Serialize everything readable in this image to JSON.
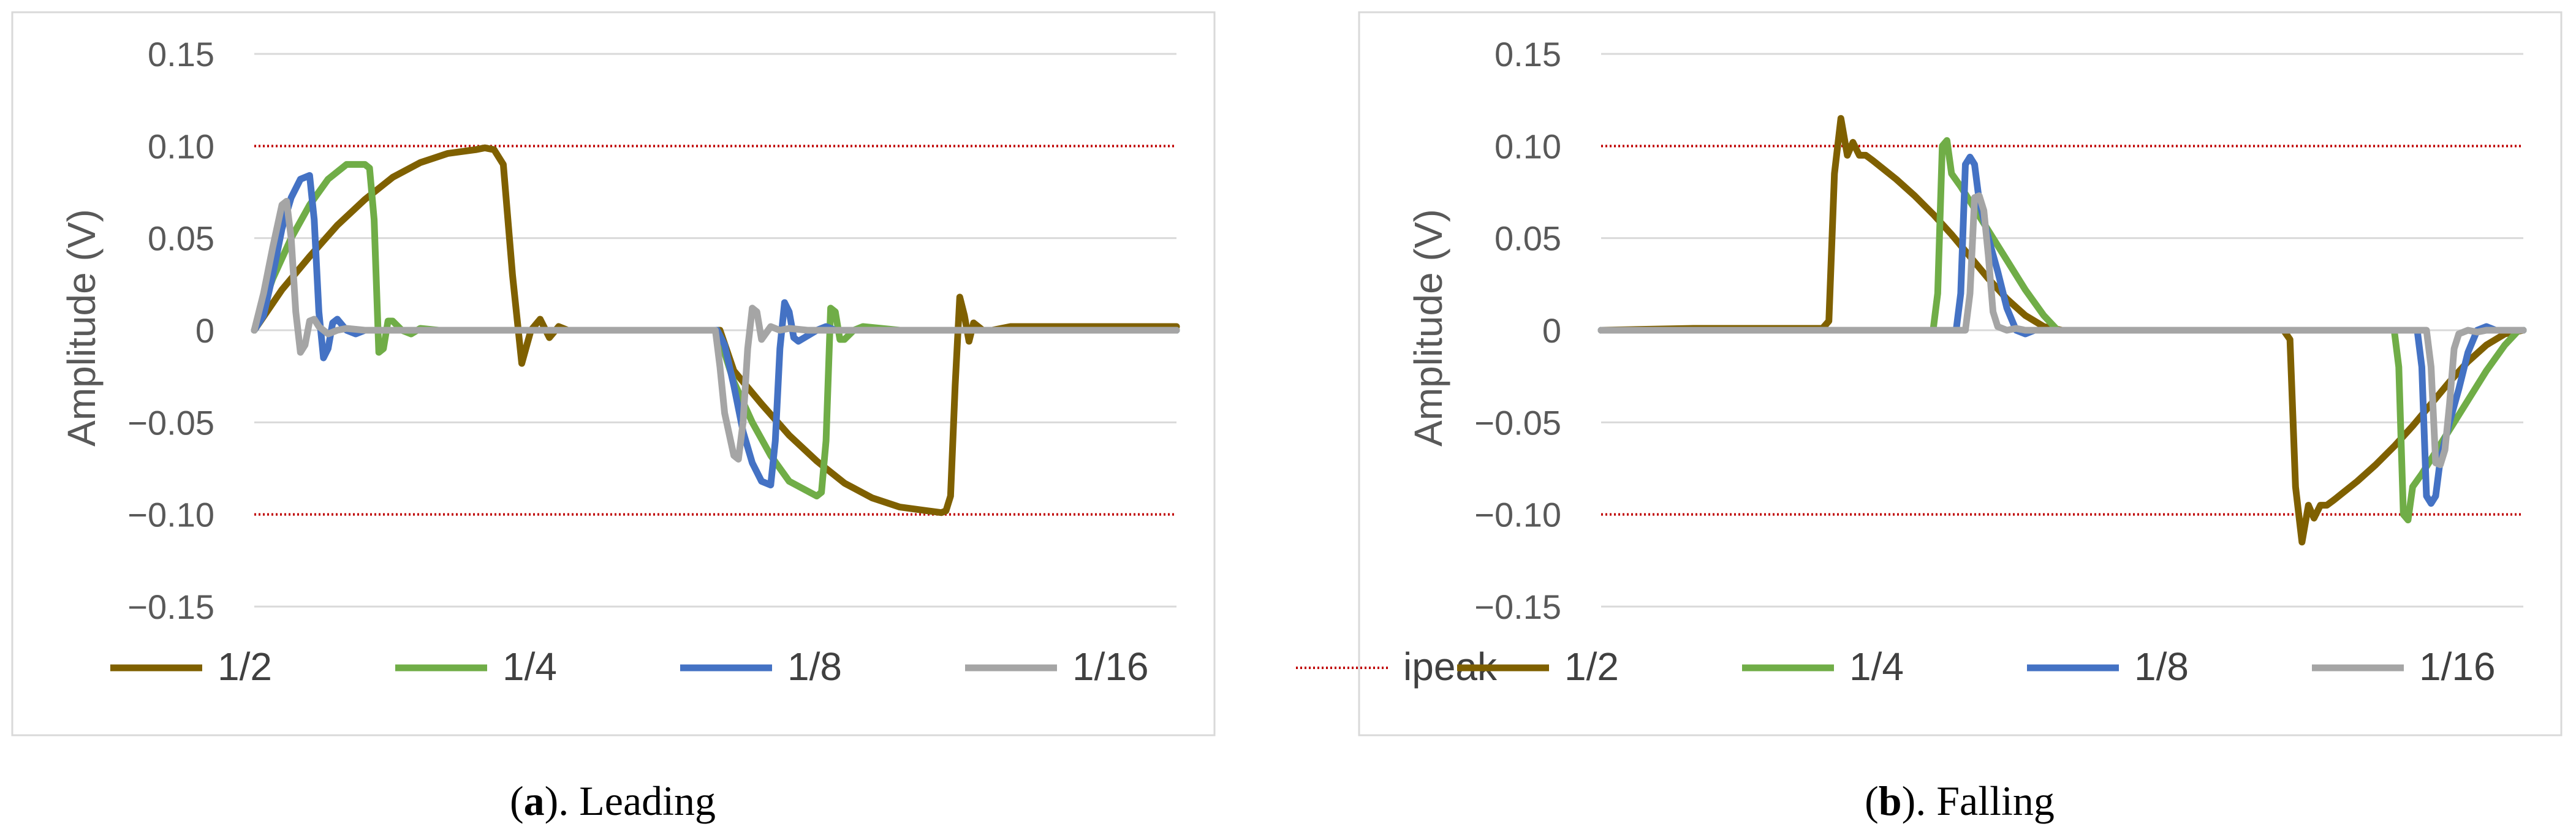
{
  "captions": [
    {
      "prefix": "(",
      "letter": "a",
      "suffix": "). Leading"
    },
    {
      "prefix": "(",
      "letter": "b",
      "suffix": "). Falling"
    }
  ],
  "colors": {
    "s_half": "#7f6000",
    "s_quarter": "#70ad47",
    "s_eighth": "#4472c4",
    "s_sixteenth": "#a5a5a5",
    "ipeak": "#c00000",
    "grid": "#d9d9d9",
    "border": "#d9d9d9"
  },
  "chart_data": [
    {
      "type": "line",
      "ylabel": "Amplitude (V)",
      "ylim": [
        -0.15,
        0.15
      ],
      "yticks": [
        {
          "value": 0.15,
          "label": "0.15"
        },
        {
          "value": 0.1,
          "label": "0.10"
        },
        {
          "value": 0.05,
          "label": "0.05"
        },
        {
          "value": 0,
          "label": "0"
        },
        {
          "value": -0.05,
          "label": "−0.05"
        },
        {
          "value": -0.1,
          "label": "−0.10"
        },
        {
          "value": -0.15,
          "label": "−0.15"
        }
      ],
      "grid": true,
      "legend": "bottom",
      "legend_labels": [
        "1/2",
        "1/4",
        "1/8",
        "1/16",
        "ipeak"
      ],
      "ipeak_levels": [
        0.1,
        -0.1
      ],
      "x_range": [
        0,
        100
      ],
      "series": [
        {
          "name": "1/2",
          "x": [
            0,
            3,
            6,
            9,
            12,
            15,
            18,
            21,
            24,
            25,
            26,
            27,
            28,
            29,
            30,
            31,
            32,
            33,
            34,
            36,
            38,
            40,
            50,
            50.5,
            52,
            55,
            58,
            61,
            64,
            67,
            70,
            73,
            74.5,
            75,
            75.5,
            76,
            76.5,
            77,
            77.5,
            78,
            79,
            80,
            82,
            100
          ],
          "y": [
            0,
            0.022,
            0.04,
            0.057,
            0.071,
            0.083,
            0.091,
            0.096,
            0.098,
            0.099,
            0.098,
            0.09,
            0.03,
            -0.018,
            0,
            0.006,
            -0.004,
            0.002,
            0,
            0,
            0,
            0,
            0,
            0,
            -0.022,
            -0.04,
            -0.057,
            -0.071,
            -0.083,
            -0.091,
            -0.096,
            -0.098,
            -0.099,
            -0.098,
            -0.09,
            -0.03,
            0.018,
            0.008,
            -0.006,
            0.004,
            0,
            0,
            0.002,
            0.002
          ]
        },
        {
          "name": "1/4",
          "x": [
            0,
            2,
            4,
            6,
            8,
            10,
            12,
            12.5,
            13,
            13.5,
            14,
            14.5,
            15,
            16,
            17,
            18,
            20,
            25,
            50,
            50.2,
            52,
            54,
            56,
            58,
            61,
            61.5,
            62,
            62.5,
            63,
            63.5,
            64,
            65,
            66,
            70,
            100
          ],
          "y": [
            0,
            0.028,
            0.05,
            0.068,
            0.082,
            0.09,
            0.09,
            0.088,
            0.06,
            -0.012,
            -0.01,
            0.005,
            0.005,
            0,
            -0.002,
            0.001,
            0,
            0,
            0,
            0,
            -0.028,
            -0.05,
            -0.068,
            -0.082,
            -0.09,
            -0.088,
            -0.06,
            0.012,
            0.01,
            -0.005,
            -0.005,
            0,
            0.002,
            0,
            0
          ]
        },
        {
          "name": "1/8",
          "x": [
            0,
            1,
            2,
            3,
            4,
            5,
            6,
            6.5,
            7,
            7.5,
            8,
            8.5,
            9,
            9.5,
            10,
            11,
            12,
            14,
            50,
            50.2,
            51,
            52,
            53,
            54,
            55,
            56,
            56.5,
            57,
            57.5,
            58,
            58.5,
            59,
            60,
            61,
            62,
            63,
            100
          ],
          "y": [
            0,
            0.008,
            0.03,
            0.055,
            0.072,
            0.082,
            0.084,
            0.06,
            0.01,
            -0.015,
            -0.01,
            0.004,
            0.006,
            0.003,
            0,
            -0.002,
            0,
            0,
            0,
            0,
            -0.008,
            -0.03,
            -0.055,
            -0.072,
            -0.082,
            -0.084,
            -0.06,
            -0.01,
            0.015,
            0.01,
            -0.004,
            -0.006,
            -0.003,
            0,
            0.002,
            0,
            0
          ]
        },
        {
          "name": "1/16",
          "x": [
            0,
            1,
            2,
            3,
            3.5,
            4,
            4.5,
            5,
            5.5,
            6,
            6.5,
            7,
            7.5,
            8,
            9,
            10,
            12,
            50,
            50.5,
            51,
            52,
            52.5,
            53,
            53.5,
            54,
            54.5,
            55,
            56,
            57,
            58,
            60,
            100
          ],
          "y": [
            0,
            0.02,
            0.045,
            0.068,
            0.07,
            0.05,
            0.01,
            -0.012,
            -0.008,
            0.005,
            0.006,
            0.002,
            0,
            -0.002,
            0,
            0.001,
            0,
            0,
            -0.02,
            -0.045,
            -0.068,
            -0.07,
            -0.05,
            -0.01,
            0.012,
            0.01,
            -0.005,
            0.002,
            0,
            0.001,
            0,
            0
          ]
        }
      ]
    },
    {
      "type": "line",
      "ylabel": "Amplitude (V)",
      "ylim": [
        -0.15,
        0.15
      ],
      "yticks": [
        {
          "value": 0.15,
          "label": "0.15"
        },
        {
          "value": 0.1,
          "label": "0.10"
        },
        {
          "value": 0.05,
          "label": "0.05"
        },
        {
          "value": 0,
          "label": "0"
        },
        {
          "value": -0.05,
          "label": "−0.05"
        },
        {
          "value": -0.1,
          "label": "−0.10"
        },
        {
          "value": -0.15,
          "label": "−0.15"
        }
      ],
      "grid": true,
      "legend": "bottom",
      "legend_labels": [
        "1/2",
        "1/4",
        "1/8",
        "1/16",
        "ipeak"
      ],
      "ipeak_levels": [
        0.1,
        -0.1
      ],
      "x_range": [
        0,
        100
      ],
      "series": [
        {
          "name": "1/2",
          "x": [
            0,
            10,
            20,
            24,
            24.7,
            25.3,
            26,
            26.7,
            27.3,
            28,
            28.7,
            29.5,
            30.5,
            32,
            34,
            36,
            38,
            40,
            42,
            44,
            46,
            48,
            50,
            74,
            74.7,
            75.3,
            76,
            76.7,
            77.3,
            78,
            78.7,
            79.5,
            80.5,
            82,
            84,
            86,
            88,
            90,
            92,
            94,
            96,
            98,
            100
          ],
          "y": [
            0,
            0.001,
            0.001,
            0.001,
            0.005,
            0.085,
            0.115,
            0.095,
            0.102,
            0.095,
            0.095,
            0.092,
            0.088,
            0.082,
            0.073,
            0.063,
            0.052,
            0.04,
            0.028,
            0.017,
            0.008,
            0.002,
            0,
            0,
            -0.005,
            -0.085,
            -0.115,
            -0.095,
            -0.102,
            -0.095,
            -0.095,
            -0.092,
            -0.088,
            -0.082,
            -0.073,
            -0.063,
            -0.052,
            -0.04,
            -0.028,
            -0.017,
            -0.008,
            -0.002,
            0
          ]
        },
        {
          "name": "1/4",
          "x": [
            0,
            36,
            36.5,
            37,
            37.5,
            38,
            39,
            40,
            41,
            42,
            44,
            46,
            48,
            49.5,
            50,
            86,
            86.5,
            87,
            87.5,
            88,
            89,
            90,
            91,
            92,
            94,
            96,
            98,
            99.5,
            100
          ],
          "y": [
            0,
            0,
            0.02,
            0.1,
            0.103,
            0.085,
            0.078,
            0.07,
            0.062,
            0.054,
            0.038,
            0.022,
            0.008,
            0,
            0,
            0,
            -0.02,
            -0.1,
            -0.103,
            -0.085,
            -0.078,
            -0.07,
            -0.062,
            -0.054,
            -0.038,
            -0.022,
            -0.008,
            0,
            0
          ]
        },
        {
          "name": "1/8",
          "x": [
            0,
            38.5,
            39,
            39.5,
            40,
            40.5,
            41,
            42,
            43,
            44,
            45,
            46,
            47,
            48,
            50,
            88.5,
            89,
            89.5,
            90,
            90.5,
            91,
            92,
            93,
            94,
            95,
            96,
            97,
            98,
            100
          ],
          "y": [
            0,
            0,
            0.02,
            0.09,
            0.094,
            0.09,
            0.07,
            0.05,
            0.032,
            0.012,
            0,
            -0.002,
            0,
            0,
            0,
            0,
            -0.02,
            -0.09,
            -0.094,
            -0.09,
            -0.07,
            -0.05,
            -0.032,
            -0.012,
            0,
            0.002,
            0,
            0,
            0
          ]
        },
        {
          "name": "1/16",
          "x": [
            0,
            39.5,
            40,
            40.5,
            41,
            41.5,
            42,
            42.5,
            43,
            44,
            45,
            46,
            50,
            89.5,
            90,
            90.5,
            91,
            91.5,
            92,
            92.5,
            93,
            94,
            95,
            96,
            100
          ],
          "y": [
            0,
            0,
            0.02,
            0.072,
            0.073,
            0.065,
            0.04,
            0.01,
            0.002,
            0,
            0.001,
            0,
            0,
            0,
            -0.02,
            -0.072,
            -0.073,
            -0.065,
            -0.04,
            -0.01,
            -0.002,
            0,
            -0.001,
            0,
            0
          ]
        }
      ]
    }
  ]
}
